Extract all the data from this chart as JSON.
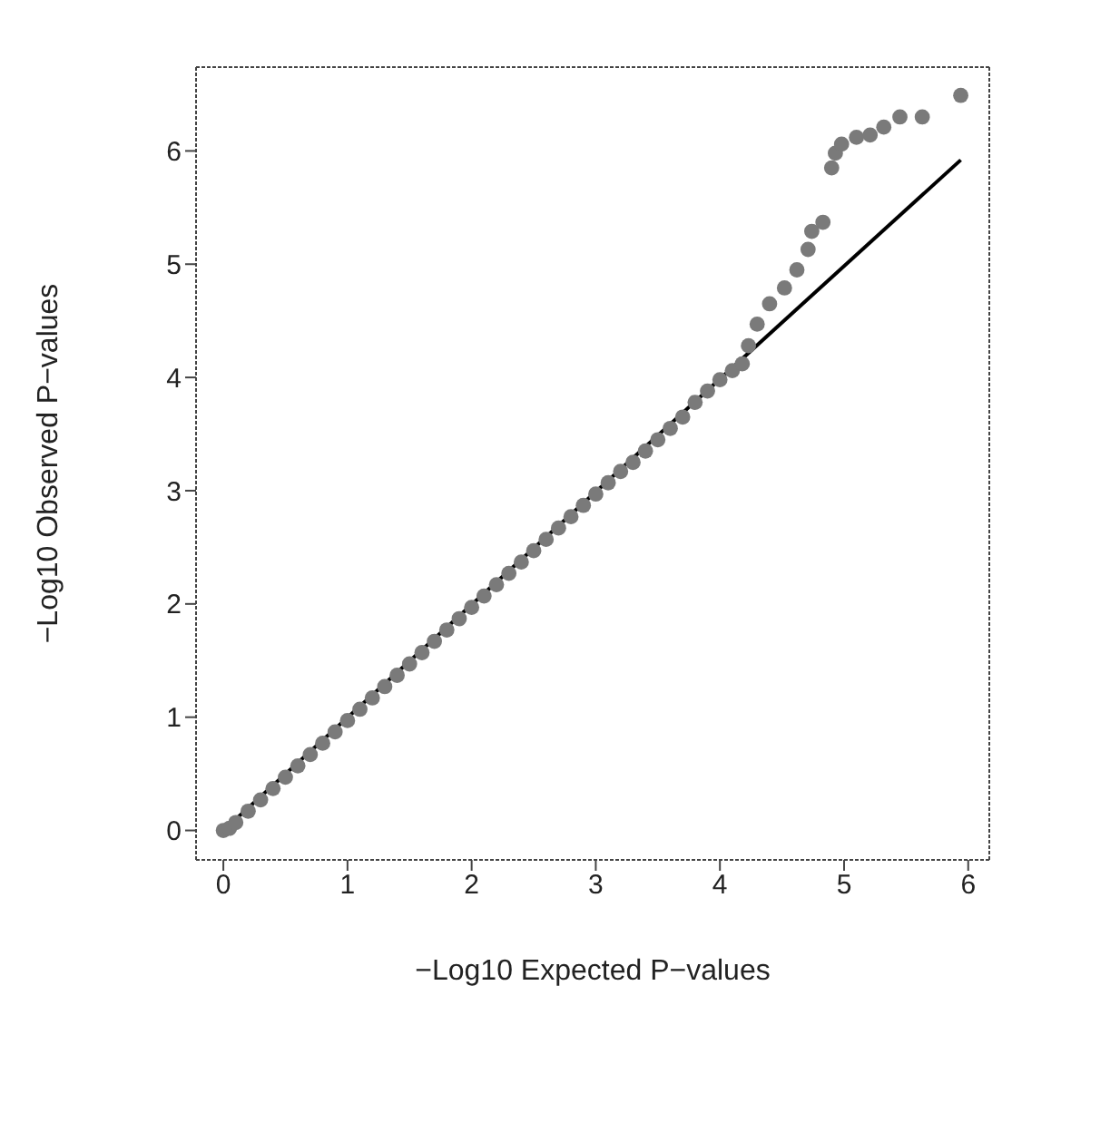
{
  "chart_data": {
    "type": "scatter",
    "xlabel": "−Log10 Expected P−values",
    "ylabel": "−Log10 Observed P−values",
    "xlim": [
      -0.22,
      6.17
    ],
    "ylim": [
      -0.26,
      6.74
    ],
    "xticks": [
      0,
      1,
      2,
      3,
      4,
      5,
      6
    ],
    "yticks": [
      0,
      1,
      2,
      3,
      4,
      5,
      6
    ],
    "grid": false,
    "series": [
      {
        "marker": "circle",
        "color": "#7a7a7a",
        "x": [
          0,
          0.05,
          0.1,
          0.2,
          0.3,
          0.4,
          0.5,
          0.6,
          0.7,
          0.8,
          0.9,
          1.0,
          1.1,
          1.2,
          1.3,
          1.4,
          1.5,
          1.6,
          1.7,
          1.8,
          1.9,
          2.0,
          2.1,
          2.2,
          2.3,
          2.4,
          2.5,
          2.6,
          2.7,
          2.8,
          2.9,
          3.0,
          3.1,
          3.2,
          3.3,
          3.4,
          3.5,
          3.6,
          3.7,
          3.8,
          3.9,
          4.0,
          4.1,
          4.18,
          4.23,
          4.3,
          4.4,
          4.52,
          4.62,
          4.71,
          4.74,
          4.83,
          4.9,
          4.93,
          4.98,
          5.1,
          5.21,
          5.32,
          5.45,
          5.63,
          5.94
        ],
        "values": [
          0,
          0.02,
          0.07,
          0.17,
          0.27,
          0.37,
          0.47,
          0.57,
          0.67,
          0.77,
          0.87,
          0.97,
          1.07,
          1.17,
          1.27,
          1.37,
          1.47,
          1.57,
          1.67,
          1.77,
          1.87,
          1.97,
          2.07,
          2.17,
          2.27,
          2.37,
          2.47,
          2.57,
          2.67,
          2.77,
          2.87,
          2.97,
          3.07,
          3.17,
          3.25,
          3.35,
          3.45,
          3.55,
          3.65,
          3.78,
          3.88,
          3.98,
          4.06,
          4.12,
          4.28,
          4.47,
          4.65,
          4.79,
          4.95,
          5.13,
          5.29,
          5.37,
          5.85,
          5.98,
          6.06,
          6.12,
          6.14,
          6.21,
          6.3,
          6.3,
          6.49
        ]
      },
      {
        "type": "line",
        "color": "#000000",
        "x": [
          0,
          5.94
        ],
        "values": [
          0,
          5.92
        ]
      }
    ]
  }
}
